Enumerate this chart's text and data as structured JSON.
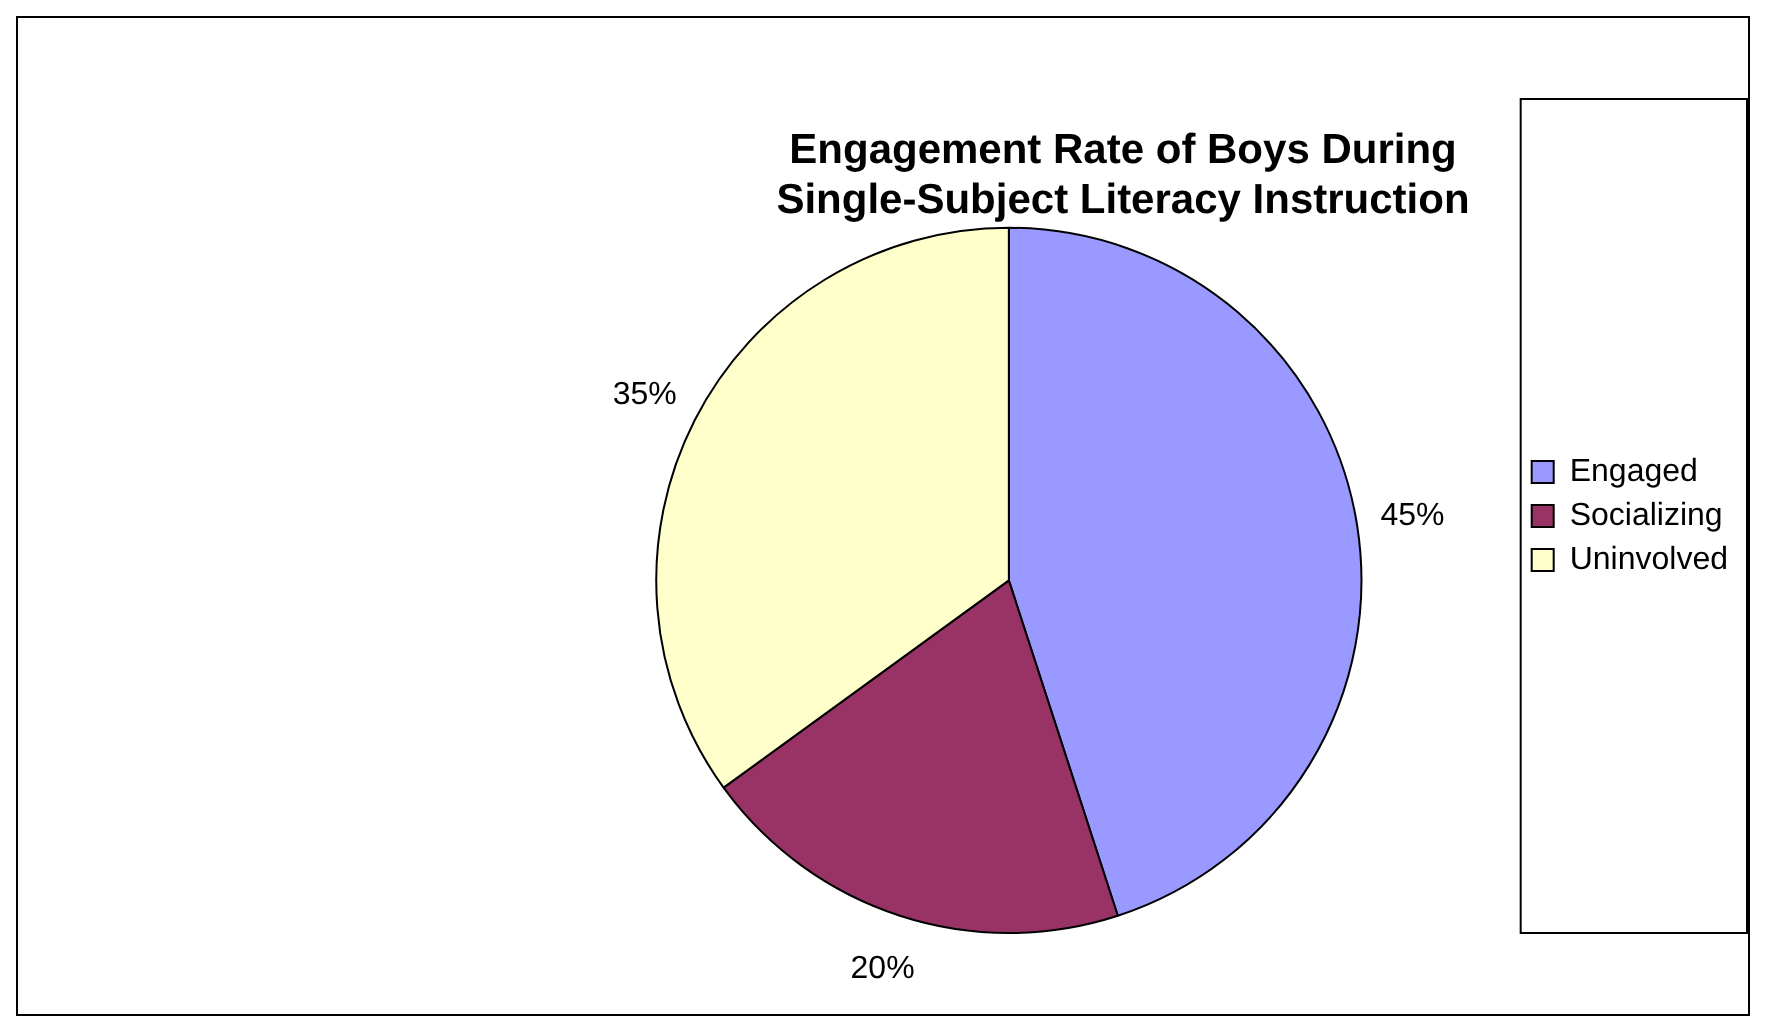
{
  "chart_data": {
    "type": "pie",
    "title": "Engagement Rate of Boys During Single-Subject Literacy Instruction",
    "categories": [
      "Engaged",
      "Socializing",
      "Uninvolved"
    ],
    "values": [
      45,
      20,
      35
    ],
    "colors": [
      "#9999ff",
      "#993366",
      "#ffffcc"
    ],
    "value_labels": [
      "45%",
      "20%",
      "35%"
    ],
    "legend": "right"
  }
}
